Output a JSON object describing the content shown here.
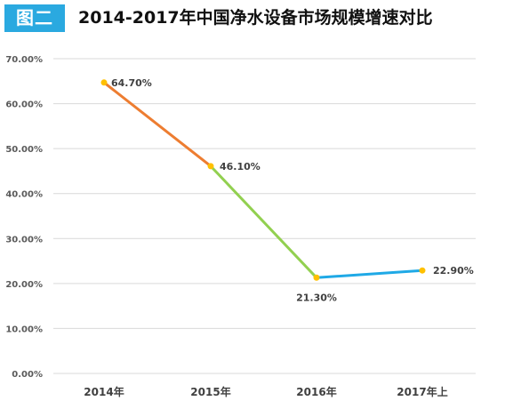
{
  "header": {
    "badge": "图二",
    "title": "2014-2017年中国净水设备市场规模增速对比"
  },
  "colors": {
    "badge": "#2aa9e0",
    "segment_1": "#ed7d31",
    "segment_2": "#92d050",
    "segment_3": "#1fa9e6",
    "marker": "#ffc000",
    "grid": "#d9d9d9"
  },
  "chart_data": {
    "type": "line",
    "title": "2014-2017年中国净水设备市场规模增速对比",
    "categories": [
      "2014年",
      "2015年",
      "2016年",
      "2017年上"
    ],
    "values": [
      64.7,
      46.1,
      21.3,
      22.9
    ],
    "data_labels": [
      "64.70%",
      "46.10%",
      "21.30%",
      "22.90%"
    ],
    "ylim": [
      0,
      70
    ],
    "yticks": [
      0,
      10,
      20,
      30,
      40,
      50,
      60,
      70
    ],
    "ytick_labels": [
      "0.00%",
      "10.00%",
      "20.00%",
      "30.00%",
      "40.00%",
      "50.00%",
      "60.00%",
      "70.00%"
    ],
    "grid": true,
    "legend": "none"
  }
}
